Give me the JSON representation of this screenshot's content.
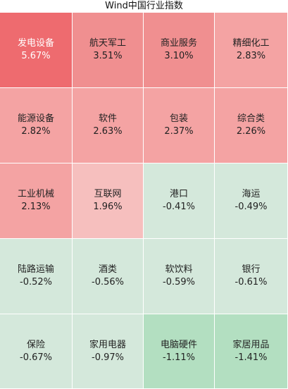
{
  "chart_data": {
    "type": "heatmap",
    "title": "Wind中国行业指数",
    "layout": "treemap-grid",
    "columns": 4,
    "rows": 5,
    "colors": {
      "positive_strong": "#ee6b6f",
      "positive_mid": "#f08f90",
      "positive_light": "#f4aaa9",
      "positive_pale": "#f6bfbe",
      "negative_light": "#d6e9de",
      "negative_mid": "#cce4d4",
      "negative_strong": "#b3dfc1"
    },
    "cells": [
      {
        "name": "发电设备",
        "value": "5.67%",
        "pct": 5.67,
        "color": "#ee6b6f",
        "strong": true
      },
      {
        "name": "航天军工",
        "value": "3.51%",
        "pct": 3.51,
        "color": "#f08f90"
      },
      {
        "name": "商业服务",
        "value": "3.10%",
        "pct": 3.1,
        "color": "#f08f90"
      },
      {
        "name": "精细化工",
        "value": "2.83%",
        "pct": 2.83,
        "color": "#f4a3a3"
      },
      {
        "name": "能源设备",
        "value": "2.82%",
        "pct": 2.82,
        "color": "#f4a3a3"
      },
      {
        "name": "软件",
        "value": "2.63%",
        "pct": 2.63,
        "color": "#f4a3a3"
      },
      {
        "name": "包装",
        "value": "2.37%",
        "pct": 2.37,
        "color": "#f4a3a3"
      },
      {
        "name": "综合类",
        "value": "2.26%",
        "pct": 2.26,
        "color": "#f4a3a3"
      },
      {
        "name": "工业机械",
        "value": "2.13%",
        "pct": 2.13,
        "color": "#f4a3a3"
      },
      {
        "name": "互联网",
        "value": "1.96%",
        "pct": 1.96,
        "color": "#f6bfbe"
      },
      {
        "name": "港口",
        "value": "-0.41%",
        "pct": -0.41,
        "color": "#d4e8db"
      },
      {
        "name": "海运",
        "value": "-0.49%",
        "pct": -0.49,
        "color": "#d4e8db"
      },
      {
        "name": "陆路运输",
        "value": "-0.52%",
        "pct": -0.52,
        "color": "#d4e8db"
      },
      {
        "name": "酒类",
        "value": "-0.56%",
        "pct": -0.56,
        "color": "#d4e8db"
      },
      {
        "name": "软饮料",
        "value": "-0.59%",
        "pct": -0.59,
        "color": "#d4e8db"
      },
      {
        "name": "银行",
        "value": "-0.61%",
        "pct": -0.61,
        "color": "#d4e8db"
      },
      {
        "name": "保险",
        "value": "-0.67%",
        "pct": -0.67,
        "color": "#d4e8db"
      },
      {
        "name": "家用电器",
        "value": "-0.97%",
        "pct": -0.97,
        "color": "#d4e8db"
      },
      {
        "name": "电脑硬件",
        "value": "-1.11%",
        "pct": -1.11,
        "color": "#b3dfc1"
      },
      {
        "name": "家居用品",
        "value": "-1.41%",
        "pct": -1.41,
        "color": "#b3dfc1"
      }
    ]
  }
}
